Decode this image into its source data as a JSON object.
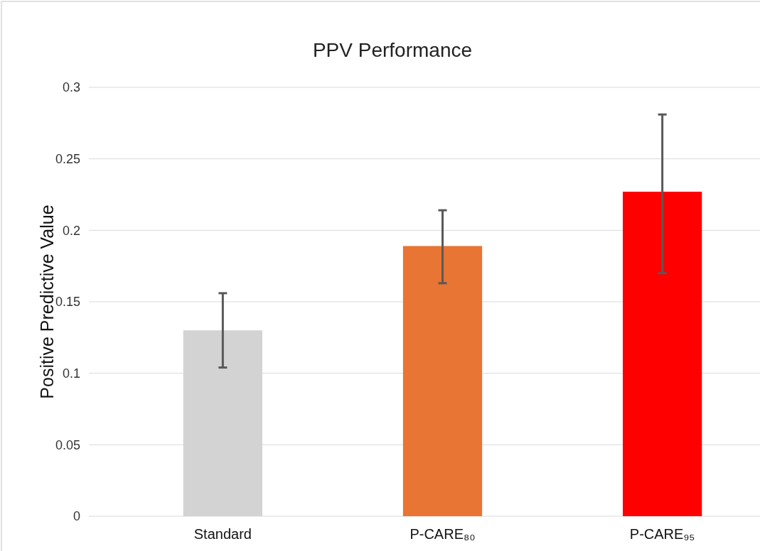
{
  "chart_data": {
    "type": "bar",
    "title": "PPV Performance",
    "ylabel": "Positive Predictive Value",
    "categories": [
      "Standard",
      "P-CARE₈₀",
      "P-CARE₉₅"
    ],
    "values": [
      0.13,
      0.189,
      0.227
    ],
    "colors": [
      "#d3d3d3",
      "#e87533",
      "#ff0000"
    ],
    "errors": [
      [
        0.104,
        0.156
      ],
      [
        0.163,
        0.214
      ],
      [
        0.17,
        0.281
      ]
    ],
    "ylim": [
      0,
      0.3
    ],
    "yticks": [
      0,
      0.05,
      0.1,
      0.15,
      0.2,
      0.25,
      0.3
    ],
    "grid": "y"
  }
}
